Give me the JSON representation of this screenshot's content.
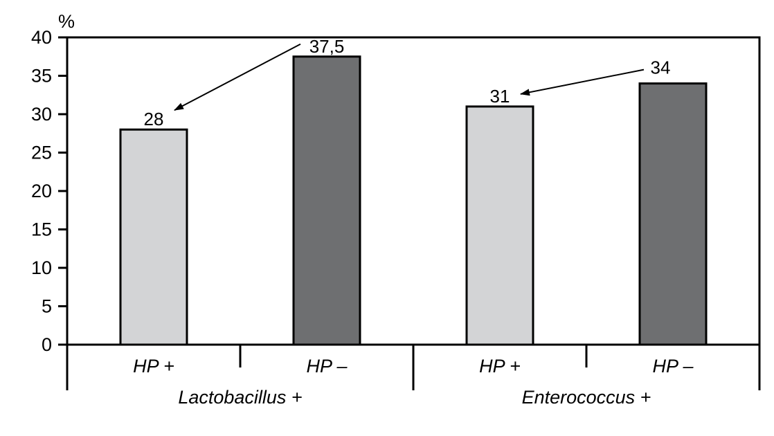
{
  "chart_data": {
    "type": "bar",
    "title": "",
    "xlabel": "",
    "ylabel": "%",
    "ylim": [
      0,
      40
    ],
    "yticks": [
      0,
      5,
      10,
      15,
      20,
      25,
      30,
      35,
      40
    ],
    "ytick_labels": [
      "0",
      "5",
      "10",
      "15",
      "20",
      "25",
      "30",
      "35",
      "40"
    ],
    "groups": [
      {
        "label": "Lactobacillus +",
        "bars": [
          {
            "label": "HP +",
            "value": 28,
            "value_label": "28",
            "color": "#d3d4d6"
          },
          {
            "label": "HP –",
            "value": 37.5,
            "value_label": "37,5",
            "color": "#6e6f71"
          }
        ]
      },
      {
        "label": "Enterococcus +",
        "bars": [
          {
            "label": "HP +",
            "value": 31,
            "value_label": "31",
            "color": "#d3d4d6"
          },
          {
            "label": "HP –",
            "value": 34,
            "value_label": "34",
            "color": "#6e6f71"
          }
        ]
      }
    ],
    "arrows": [
      {
        "from": "Lactobacillus +/HP –",
        "to": "Lactobacillus +/HP +"
      },
      {
        "from": "Enterococcus +/HP –",
        "to": "Enterococcus +/HP +"
      }
    ],
    "grid": false,
    "legend": "none"
  }
}
